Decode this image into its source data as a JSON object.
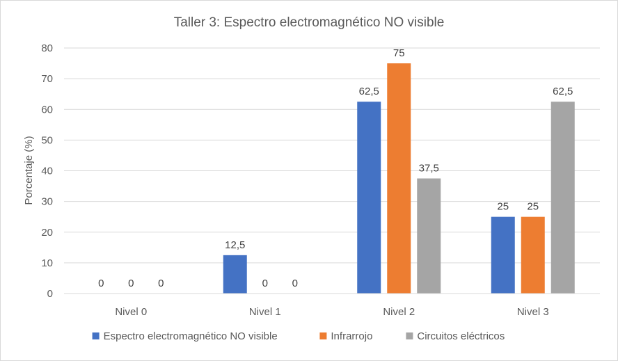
{
  "chart_data": {
    "type": "bar",
    "title": "Taller 3: Espectro electromagnético  NO visible",
    "xlabel": "",
    "ylabel": "Porcentaje (%)",
    "categories": [
      "Nivel 0",
      "Nivel 1",
      "Nivel 2",
      "Nivel 3"
    ],
    "ylim": [
      0,
      80
    ],
    "yticks": [
      0,
      10,
      20,
      30,
      40,
      50,
      60,
      70,
      80
    ],
    "grid": true,
    "legend_position": "bottom",
    "series": [
      {
        "name": "Espectro electromagnético NO visible",
        "color": "#4472c4",
        "values": [
          0,
          12.5,
          62.5,
          25
        ],
        "labels": [
          "0",
          "12,5",
          "62,5",
          "25"
        ]
      },
      {
        "name": "Infrarrojo",
        "color": "#ed7d31",
        "values": [
          0,
          0,
          75,
          25
        ],
        "labels": [
          "0",
          "0",
          "75",
          "25"
        ]
      },
      {
        "name": "Circuitos eléctricos",
        "color": "#a5a5a5",
        "values": [
          0,
          0,
          37.5,
          62.5
        ],
        "labels": [
          "0",
          "0",
          "37,5",
          "62,5"
        ]
      }
    ]
  }
}
